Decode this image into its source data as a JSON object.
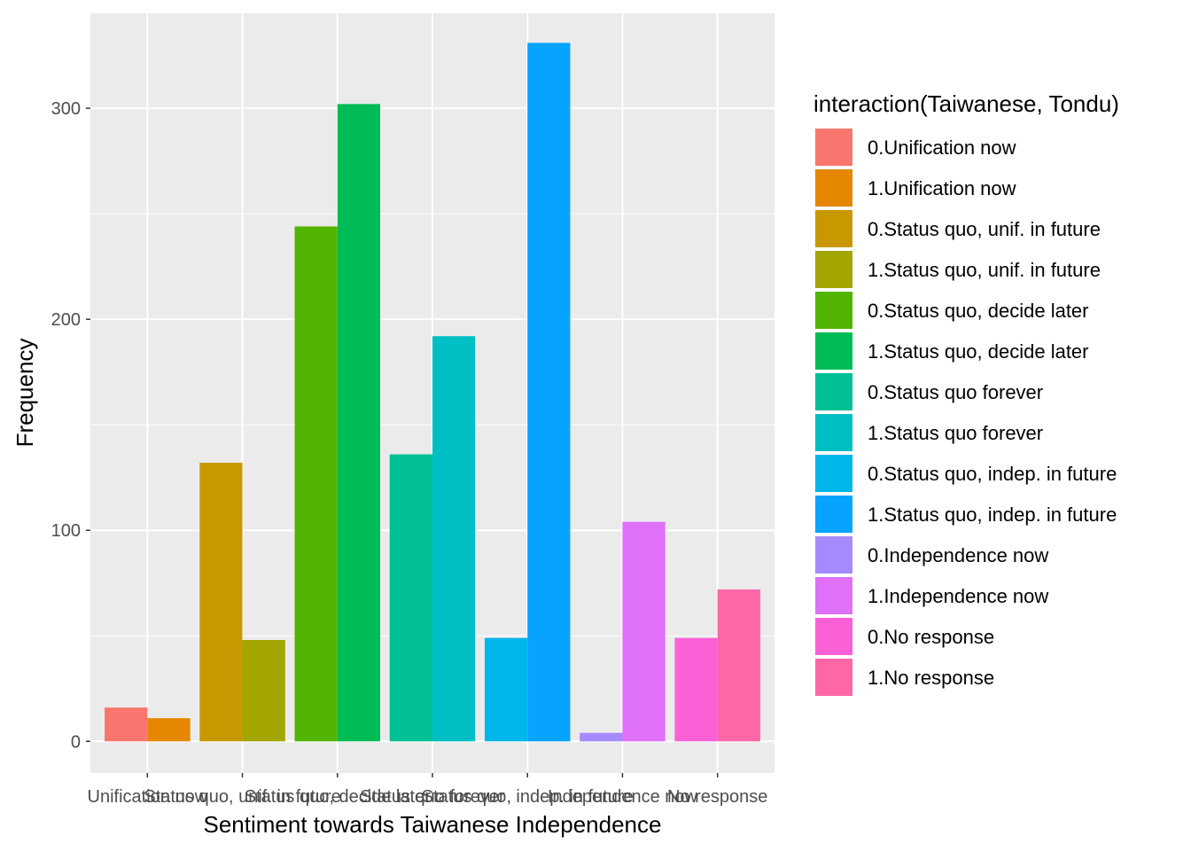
{
  "chart_data": {
    "type": "bar",
    "xlabel": "Sentiment towards Taiwanese Independence",
    "ylabel": "Frequency",
    "ylim": [
      -15,
      345
    ],
    "yticks": [
      0,
      100,
      200,
      300
    ],
    "grid": true,
    "legend_position": "right",
    "legend_title": "interaction(Taiwanese, Tondu)",
    "categories": [
      "Unification now",
      "Status quo, unif. in future",
      "Status quo, decide later",
      "Status quo forever",
      "Status quo, indep. in future",
      "Independence now",
      "No response"
    ],
    "series": [
      {
        "name": "0.Unification now",
        "color": "#F8766D",
        "category": 0,
        "group": 0,
        "value": 16
      },
      {
        "name": "1.Unification now",
        "color": "#E58700",
        "category": 0,
        "group": 1,
        "value": 11
      },
      {
        "name": "0.Status quo, unif. in future",
        "color": "#C99800",
        "category": 1,
        "group": 0,
        "value": 132
      },
      {
        "name": "1.Status quo, unif. in future",
        "color": "#A3A500",
        "category": 1,
        "group": 1,
        "value": 48
      },
      {
        "name": "0.Status quo, decide later",
        "color": "#53B400",
        "category": 2,
        "group": 0,
        "value": 244
      },
      {
        "name": "1.Status quo, decide later",
        "color": "#00BC56",
        "category": 2,
        "group": 1,
        "value": 302
      },
      {
        "name": "0.Status quo forever",
        "color": "#00C094",
        "category": 3,
        "group": 0,
        "value": 136
      },
      {
        "name": "1.Status quo forever",
        "color": "#00BFC4",
        "category": 3,
        "group": 1,
        "value": 192
      },
      {
        "name": "0.Status quo, indep. in future",
        "color": "#00B6EB",
        "category": 4,
        "group": 0,
        "value": 49
      },
      {
        "name": "1.Status quo, indep. in future",
        "color": "#06A4FF",
        "category": 4,
        "group": 1,
        "value": 331
      },
      {
        "name": "0.Independence now",
        "color": "#A58AFF",
        "category": 5,
        "group": 0,
        "value": 4
      },
      {
        "name": "1.Independence now",
        "color": "#DF70F8",
        "category": 5,
        "group": 1,
        "value": 104
      },
      {
        "name": "0.No response",
        "color": "#FB61D7",
        "category": 6,
        "group": 0,
        "value": 49
      },
      {
        "name": "1.No response",
        "color": "#FF66A8",
        "category": 6,
        "group": 1,
        "value": 72
      }
    ]
  }
}
